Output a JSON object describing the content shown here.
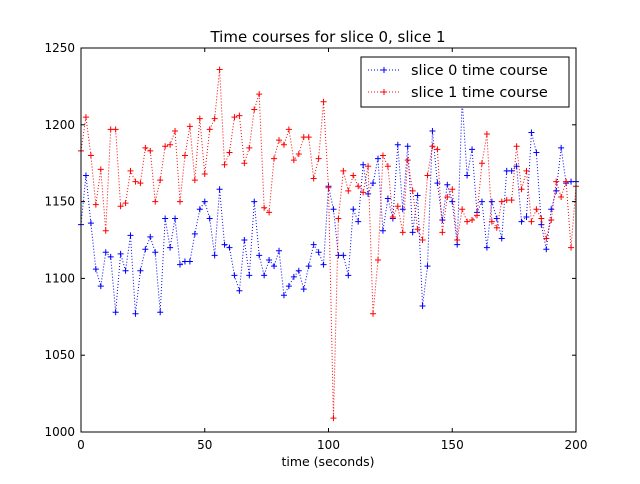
{
  "chart_data": {
    "type": "line",
    "title": "Time courses for slice 0, slice 1",
    "xlabel": "time (seconds)",
    "ylabel": "",
    "xlim": [
      0,
      200
    ],
    "ylim": [
      1000,
      1250
    ],
    "xticks": [
      0,
      50,
      100,
      150,
      200
    ],
    "yticks": [
      1000,
      1050,
      1100,
      1150,
      1200,
      1250
    ],
    "grid": false,
    "legend_position": "top-right",
    "x": [
      0,
      2,
      4,
      6,
      8,
      10,
      12,
      14,
      16,
      18,
      20,
      22,
      24,
      26,
      28,
      30,
      32,
      34,
      36,
      38,
      40,
      42,
      44,
      46,
      48,
      50,
      52,
      54,
      56,
      58,
      60,
      62,
      64,
      66,
      68,
      70,
      72,
      74,
      76,
      78,
      80,
      82,
      84,
      86,
      88,
      90,
      92,
      94,
      96,
      98,
      100,
      102,
      104,
      106,
      108,
      110,
      112,
      114,
      116,
      118,
      120,
      122,
      124,
      126,
      128,
      130,
      132,
      134,
      136,
      138,
      140,
      142,
      144,
      146,
      148,
      150,
      152,
      154,
      156,
      158,
      160,
      162,
      164,
      166,
      168,
      170,
      172,
      174,
      176,
      178,
      180,
      182,
      184,
      186,
      188,
      190,
      192,
      194,
      196,
      198,
      200
    ],
    "series": [
      {
        "name": "slice 0 time course",
        "color": "#0000ff",
        "values": [
          1135,
          1167,
          1136,
          1106,
          1095,
          1117,
          1114,
          1078,
          1116,
          1105,
          1128,
          1077,
          1105,
          1119,
          1127,
          1117,
          1078,
          1139,
          1120,
          1139,
          1109,
          1111,
          1111,
          1129,
          1145,
          1150,
          1139,
          1115,
          1158,
          1122,
          1120,
          1102,
          1092,
          1125,
          1102,
          1150,
          1115,
          1102,
          1112,
          1108,
          1118,
          1089,
          1095,
          1101,
          1105,
          1093,
          1108,
          1122,
          1117,
          1109,
          1160,
          1145,
          1115,
          1115,
          1102,
          1145,
          1137,
          1174,
          1155,
          1162,
          1178,
          1131,
          1152,
          1139,
          1187,
          1145,
          1186,
          1130,
          1154,
          1082,
          1108,
          1196,
          1162,
          1138,
          1161,
          1150,
          1122,
          1216,
          1167,
          1184,
          1143,
          1150,
          1120,
          1150,
          1139,
          1126,
          1170,
          1170,
          1173,
          1137,
          1140,
          1195,
          1182,
          1135,
          1119,
          1145,
          1157,
          1185,
          1162,
          1163,
          1163
        ]
      },
      {
        "name": "slice 1 time course",
        "color": "#ff0000",
        "values": [
          1183,
          1205,
          1180,
          1148,
          1171,
          1131,
          1197,
          1197,
          1147,
          1149,
          1170,
          1163,
          1162,
          1185,
          1183,
          1150,
          1164,
          1186,
          1187,
          1196,
          1150,
          1180,
          1199,
          1164,
          1204,
          1168,
          1197,
          1204,
          1236,
          1174,
          1182,
          1205,
          1206,
          1175,
          1185,
          1210,
          1220,
          1146,
          1143,
          1178,
          1190,
          1187,
          1197,
          1177,
          1181,
          1192,
          1192,
          1165,
          1178,
          1215,
          1159,
          1009,
          1139,
          1170,
          1157,
          1167,
          1160,
          1156,
          1173,
          1077,
          1112,
          1180,
          1173,
          1140,
          1147,
          1130,
          1177,
          1157,
          1132,
          1125,
          1167,
          1186,
          1184,
          1130,
          1153,
          1158,
          1125,
          1145,
          1137,
          1138,
          1141,
          1175,
          1194,
          1137,
          1133,
          1150,
          1151,
          1151,
          1186,
          1158,
          1170,
          1137,
          1145,
          1139,
          1126,
          1138,
          1163,
          1153,
          1163,
          1120,
          1160
        ]
      }
    ]
  }
}
